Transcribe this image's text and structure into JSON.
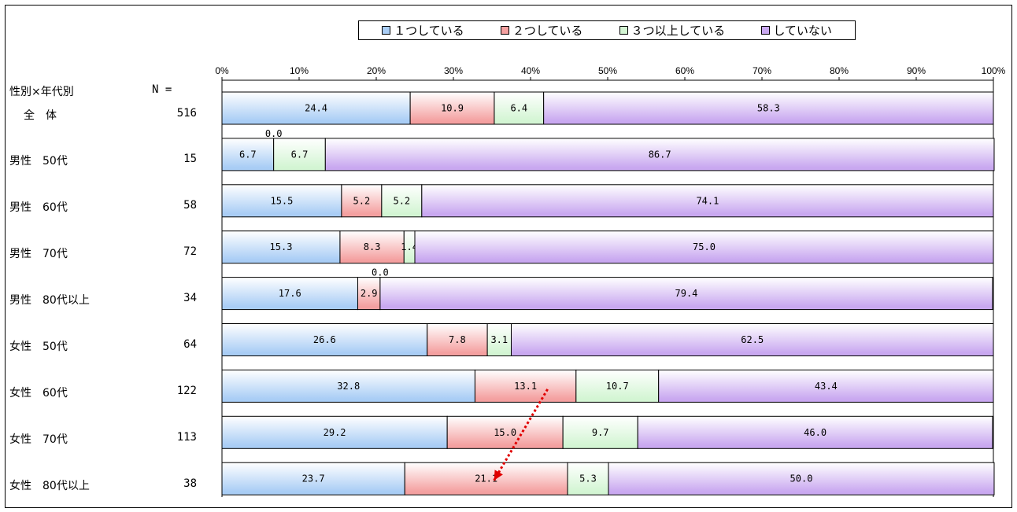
{
  "legend": [
    {
      "label": "１つしている",
      "color": "#a9cdf5"
    },
    {
      "label": "２つしている",
      "color": "#f4a0a0"
    },
    {
      "label": "３つ以上している",
      "color": "#d3f5d3"
    },
    {
      "label": "していない",
      "color": "#c9a8f0"
    }
  ],
  "header": {
    "group_label": "性別×年代別",
    "n_label": "N ="
  },
  "chart_data": {
    "type": "bar",
    "orientation": "horizontal",
    "stacked_percent": true,
    "xlim": [
      0,
      100
    ],
    "x_ticks": [
      "0%",
      "10%",
      "20%",
      "30%",
      "40%",
      "50%",
      "60%",
      "70%",
      "80%",
      "90%",
      "100%"
    ],
    "categories": [
      "全　体",
      "男性　50代",
      "男性　60代",
      "男性　70代",
      "男性　80代以上",
      "女性　50代",
      "女性　60代",
      "女性　70代",
      "女性　80代以上"
    ],
    "n": [
      516,
      15,
      58,
      72,
      34,
      64,
      122,
      113,
      38
    ],
    "series": [
      {
        "name": "１つしている",
        "color": "#a9cdf5",
        "values": [
          24.4,
          6.7,
          15.5,
          15.3,
          17.6,
          26.6,
          32.8,
          29.2,
          23.7
        ]
      },
      {
        "name": "２つしている",
        "color": "#f4a0a0",
        "values": [
          10.9,
          0.0,
          5.2,
          8.3,
          2.9,
          7.8,
          13.1,
          15.0,
          21.1
        ]
      },
      {
        "name": "３つ以上している",
        "color": "#d3f5d3",
        "values": [
          6.4,
          6.7,
          5.2,
          1.4,
          0.0,
          3.1,
          10.7,
          9.7,
          5.3
        ]
      },
      {
        "name": "していない",
        "color": "#c9a8f0",
        "values": [
          58.3,
          86.7,
          74.1,
          75.0,
          79.4,
          62.5,
          43.4,
          46.0,
          50.0
        ]
      }
    ],
    "data_labels": [
      [
        "24.4",
        "10.9",
        "6.4",
        "58.3"
      ],
      [
        "6.7",
        "0.0",
        "6.7",
        "86.7"
      ],
      [
        "15.5",
        "5.2",
        "5.2",
        "74.1"
      ],
      [
        "15.3",
        "8.3",
        "1.4",
        "75.0"
      ],
      [
        "17.6",
        "2.9",
        "0.0",
        "79.4"
      ],
      [
        "26.6",
        "7.8",
        "3.1",
        "62.5"
      ],
      [
        "32.8",
        "13.1",
        "10.7",
        "43.4"
      ],
      [
        "29.2",
        "15.0",
        "9.7",
        "46.0"
      ],
      [
        "23.7",
        "21.1",
        "5.3",
        "50.0"
      ]
    ],
    "annotation": {
      "type": "arrow",
      "style": "dotted",
      "color": "#e00000",
      "from_segment": "女性　60代 / ２つしている",
      "to_segment": "女性　80代以上 / ２つしている"
    }
  }
}
